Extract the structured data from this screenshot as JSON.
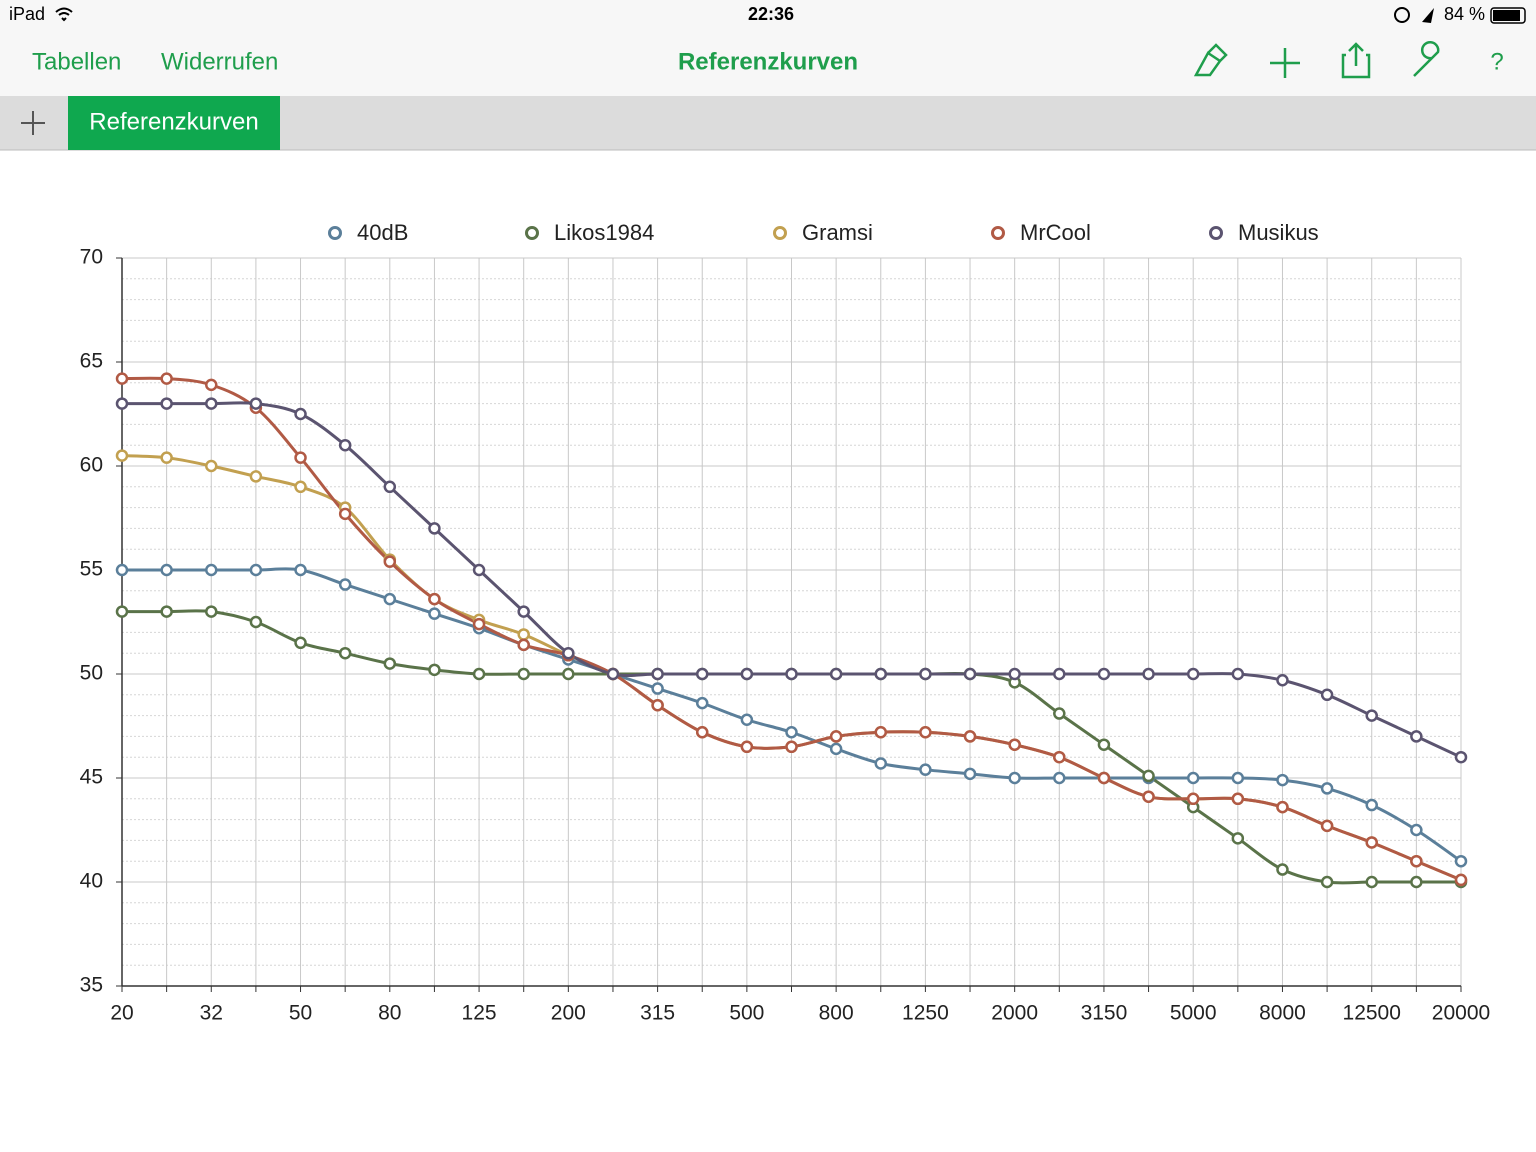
{
  "status_bar": {
    "device": "iPad",
    "time": "22:36",
    "battery": "84 %"
  },
  "toolbar": {
    "left": [
      "Tabellen",
      "Widerrufen"
    ],
    "title": "Referenzkurven",
    "help": "?"
  },
  "tabs": [
    "Referenzkurven"
  ],
  "chart_data": {
    "type": "line",
    "categories": [
      "20",
      null,
      "32",
      null,
      "50",
      null,
      "80",
      null,
      "125",
      null,
      "200",
      null,
      "315",
      null,
      "500",
      null,
      "800",
      null,
      "1250",
      null,
      "2000",
      null,
      "3150",
      null,
      "5000",
      null,
      "8000",
      null,
      "12500",
      null,
      "20000"
    ],
    "ylim": [
      35,
      70
    ],
    "yticks": [
      35,
      40,
      45,
      50,
      55,
      60,
      65,
      70
    ],
    "grid": true,
    "legend": "top",
    "series": [
      {
        "name": "40dB",
        "color": "#5b7f9a",
        "values": [
          55,
          55,
          55,
          55,
          55,
          54.3,
          53.6,
          52.9,
          52.2,
          51.4,
          50.7,
          50,
          49.3,
          48.6,
          47.8,
          47.2,
          46.4,
          45.7,
          45.4,
          45.2,
          45,
          45,
          45,
          45,
          45,
          45,
          44.9,
          44.5,
          43.7,
          42.5,
          41
        ]
      },
      {
        "name": "Likos1984",
        "color": "#5a7349",
        "values": [
          53,
          53,
          53,
          52.5,
          51.5,
          51,
          50.5,
          50.2,
          50,
          50,
          50,
          50,
          50,
          50,
          50,
          50,
          50,
          50,
          50,
          50,
          49.6,
          48.1,
          46.6,
          45.1,
          43.6,
          42.1,
          40.6,
          40,
          40,
          40,
          40
        ]
      },
      {
        "name": "Gramsi",
        "color": "#c2a050",
        "values": [
          60.5,
          60.4,
          60,
          59.5,
          59,
          58,
          55.5,
          53.6,
          52.6,
          51.9,
          50.9,
          50,
          48.5,
          47.2,
          46.5,
          46.5,
          47,
          47.2,
          47.2,
          47,
          46.6,
          46,
          45,
          44.1,
          44,
          44,
          43.6,
          42.7,
          41.9,
          41,
          40.1
        ]
      },
      {
        "name": "MrCool",
        "color": "#b15a45",
        "values": [
          64.2,
          64.2,
          63.9,
          62.8,
          60.4,
          57.7,
          55.4,
          53.6,
          52.4,
          51.4,
          50.9,
          50,
          48.5,
          47.2,
          46.5,
          46.5,
          47,
          47.2,
          47.2,
          47,
          46.6,
          46,
          45,
          44.1,
          44,
          44,
          43.6,
          42.7,
          41.9,
          41,
          40.1
        ]
      },
      {
        "name": "Musikus",
        "color": "#5b5470",
        "values": [
          63,
          63,
          63,
          63,
          62.5,
          61,
          59,
          57,
          55,
          53,
          51,
          50,
          50,
          50,
          50,
          50,
          50,
          50,
          50,
          50,
          50,
          50,
          50,
          50,
          50,
          50,
          49.7,
          49,
          48,
          47,
          46
        ]
      }
    ]
  }
}
